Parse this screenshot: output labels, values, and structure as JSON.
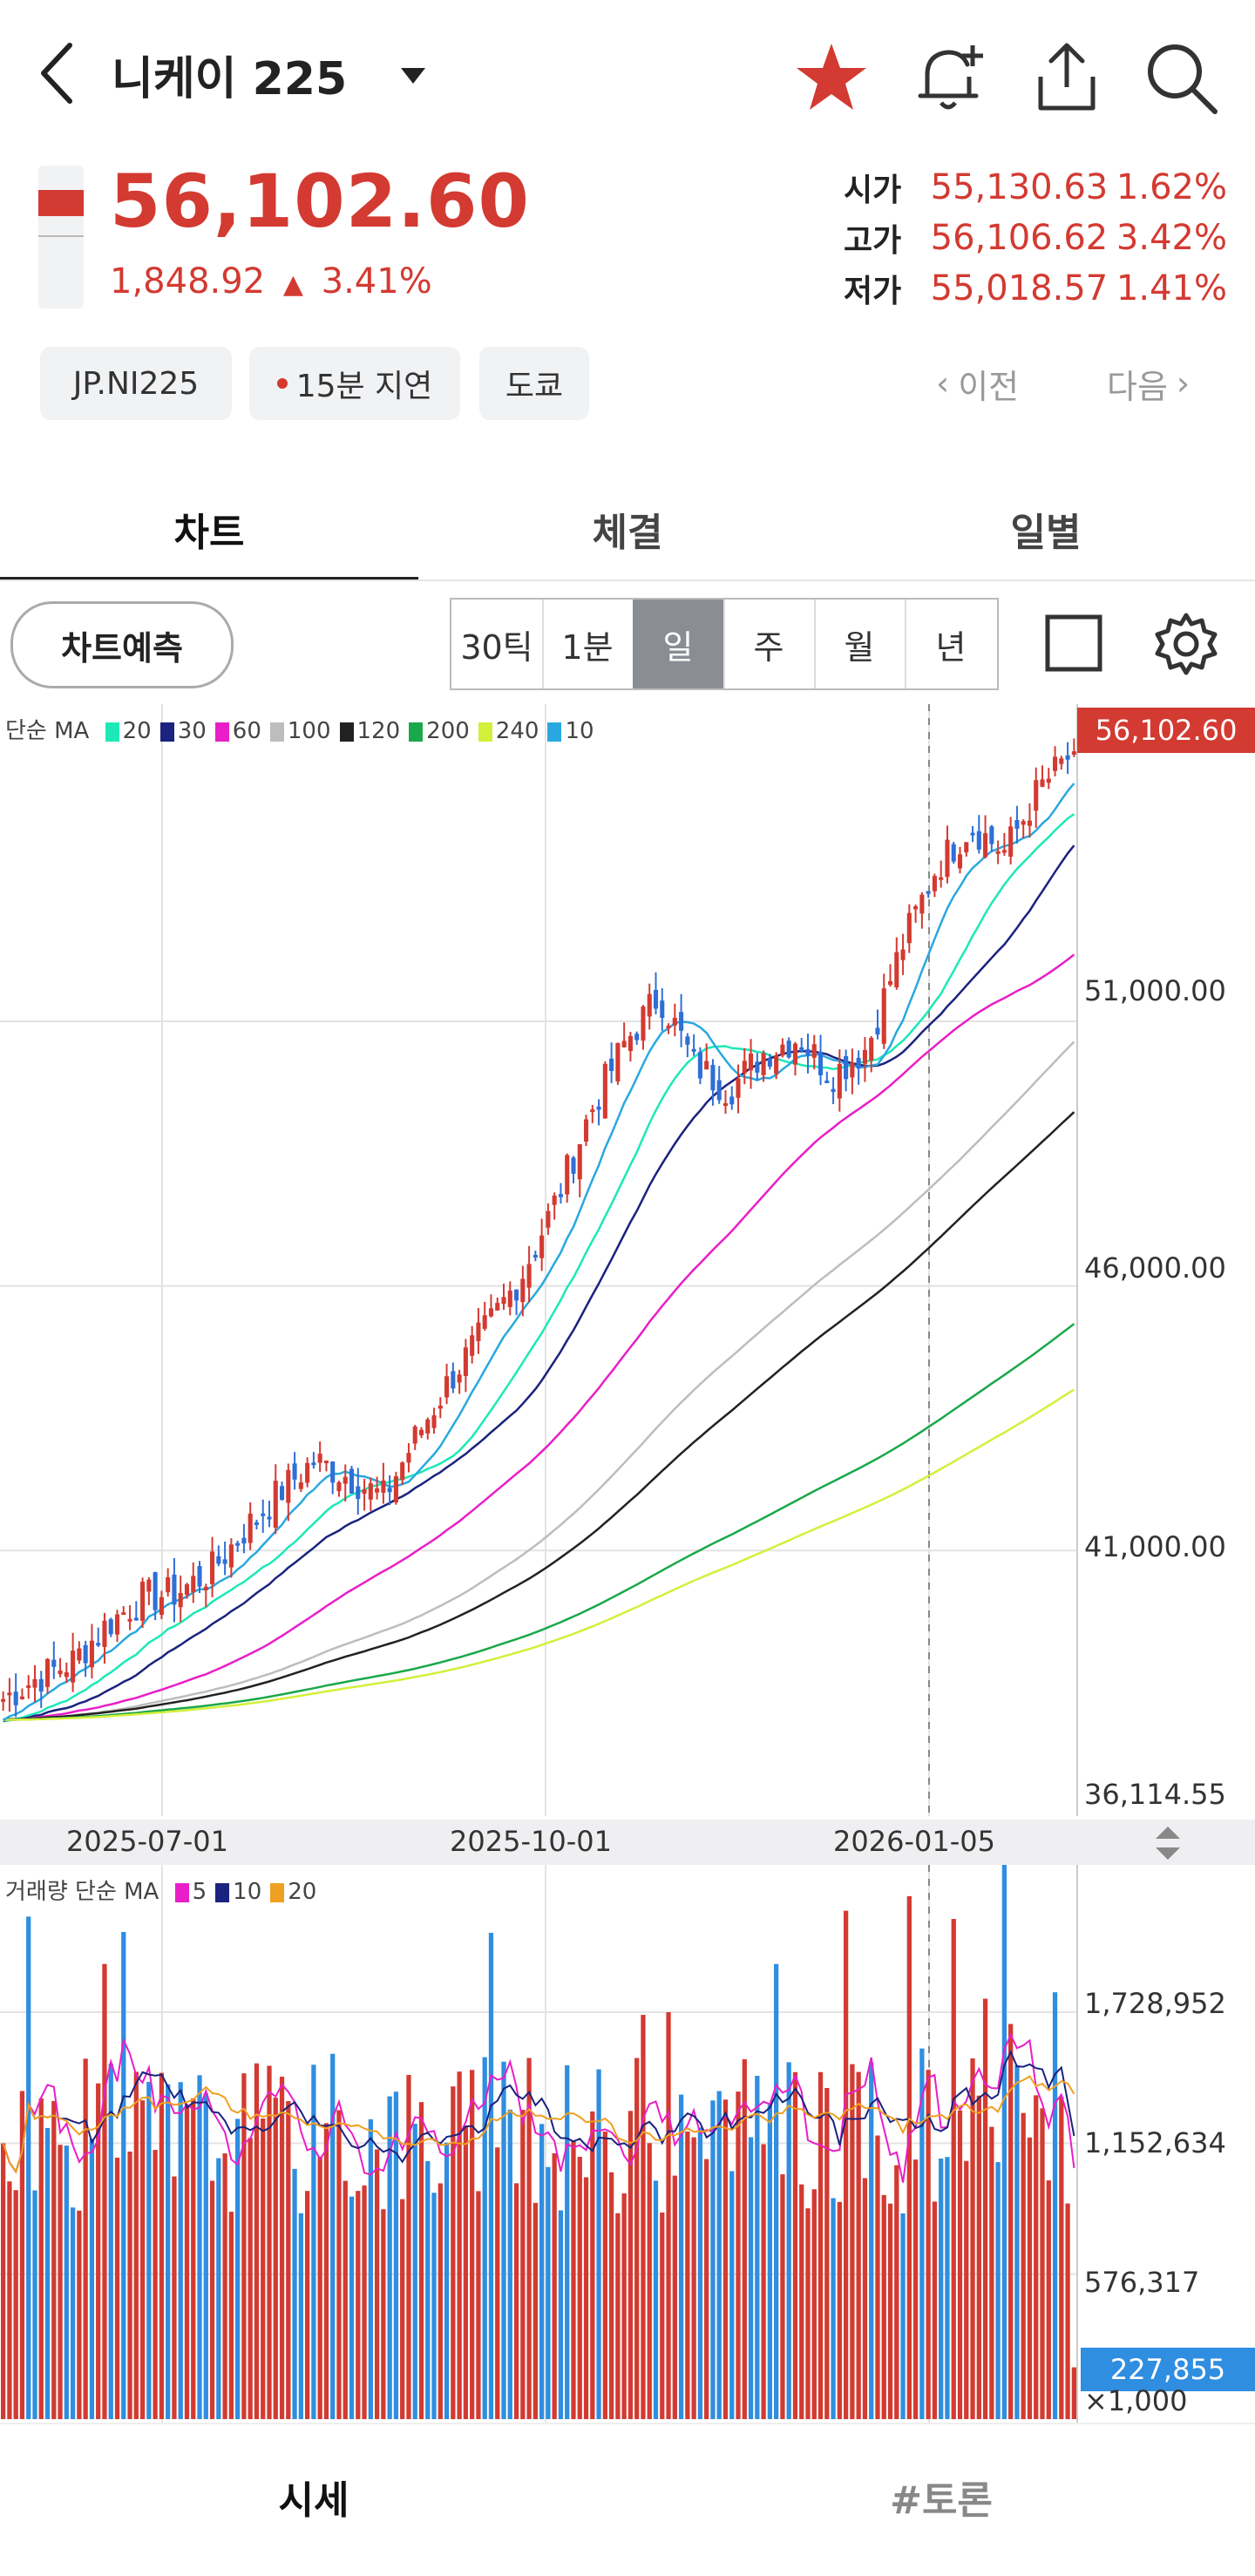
{
  "header": {
    "title": "니케이 225",
    "icons": [
      "back-chevron-icon",
      "dropdown-caret-icon",
      "star-icon",
      "bell-plus-icon",
      "share-icon",
      "search-icon"
    ]
  },
  "quote": {
    "price": "56,102.60",
    "change": "1,848.92",
    "change_pct": "3.41%",
    "open_label": "시가",
    "open_value": "55,130.63",
    "open_pct": "1.62%",
    "high_label": "고가",
    "high_value": "56,106.62",
    "high_pct": "3.42%",
    "low_label": "저가",
    "low_value": "55,018.57",
    "low_pct": "1.41%",
    "accent": "#d33a31"
  },
  "chips": {
    "symbol": "JP.NI225",
    "delay": "15분 지연",
    "market": "도쿄",
    "prev": "이전",
    "next": "다음"
  },
  "tabs": [
    "차트",
    "체결",
    "일별"
  ],
  "toolbar": {
    "predict": "차트예측",
    "periods": [
      "30틱",
      "1분",
      "일",
      "주",
      "월",
      "년"
    ],
    "selected_period": "일"
  },
  "price_legend": {
    "label": "단순 MA",
    "items": [
      {
        "label": "20",
        "color": "#1de9b6"
      },
      {
        "label": "30",
        "color": "#1a237e"
      },
      {
        "label": "60",
        "color": "#e91ec8"
      },
      {
        "label": "100",
        "color": "#bdbdbd"
      },
      {
        "label": "120",
        "color": "#222222"
      },
      {
        "label": "200",
        "color": "#1aa84a"
      },
      {
        "label": "240",
        "color": "#d4ef3a"
      },
      {
        "label": "10",
        "color": "#29a8e0"
      }
    ]
  },
  "volume_legend": {
    "label": "거래량 단순 MA",
    "items": [
      {
        "label": "5",
        "color": "#e91ec8"
      },
      {
        "label": "10",
        "color": "#1a237e"
      },
      {
        "label": "20",
        "color": "#f0a020"
      }
    ]
  },
  "chart_data": [
    {
      "type": "candlestick",
      "x_ticks": [
        "2025-07-01",
        "2025-10-01",
        "2026-01-05"
      ],
      "y_ticks": [
        "51,000.00",
        "46,000.00",
        "41,000.00",
        "36,114.55"
      ],
      "last_price_tag": "56,102.60",
      "ylim": [
        36114.55,
        56500
      ],
      "grid": true,
      "approx_close_path": [
        38200,
        38600,
        38900,
        39600,
        40100,
        40200,
        40600,
        41400,
        42100,
        42700,
        42400,
        42000,
        43200,
        44300,
        45200,
        46200,
        47600,
        49300,
        50600,
        51500,
        50200,
        49700,
        50400,
        50700,
        50000,
        50500,
        52400,
        53900,
        54700,
        54200,
        55400,
        56102.6
      ]
    },
    {
      "type": "bar",
      "y_ticks": [
        "1,728,952",
        "1,152,634",
        "576,317"
      ],
      "unit": "×1,000",
      "last_volume_tag": "227,855"
    }
  ],
  "bottom_tabs": [
    "시세",
    "#토론"
  ]
}
